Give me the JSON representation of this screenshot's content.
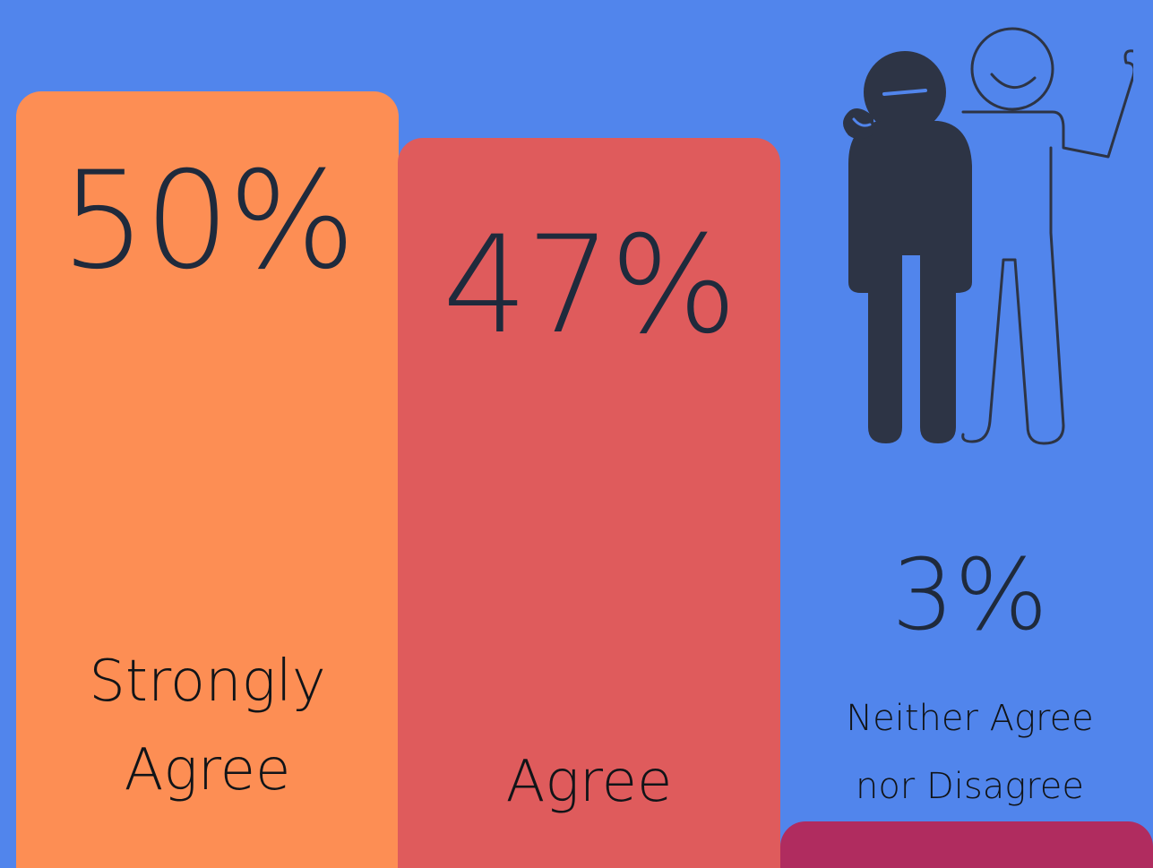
{
  "chart_data": {
    "type": "bar",
    "categories": [
      "Strongly Agree",
      "Agree",
      "Neither Agree nor Disagree"
    ],
    "values": [
      50,
      47,
      3
    ],
    "value_labels": [
      "50%",
      "47%",
      "3%"
    ],
    "label_lines": [
      [
        "Strongly",
        "Agree"
      ],
      [
        "Agree"
      ],
      [
        "Neither Agree",
        "nor Disagree"
      ]
    ],
    "colors": [
      "#fd8e54",
      "#df5b5c",
      "#b02c5f"
    ],
    "ylim": [
      0,
      50
    ],
    "grid": false,
    "legend": "none"
  },
  "colors": {
    "background": "#5185ec",
    "text": "#1f2a3c"
  },
  "illustration": {
    "icon": "two-friends-icon"
  }
}
